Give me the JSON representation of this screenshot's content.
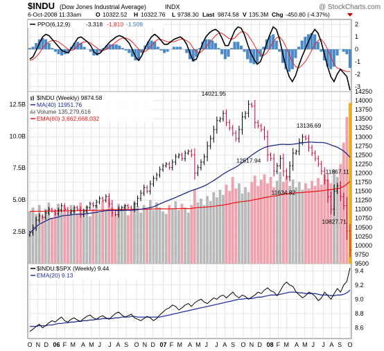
{
  "header": {
    "symbol": "$INDU",
    "name": "(Dow Jones Industrial Average)",
    "exchange": "INDX",
    "date": "6-Oct-2008 11:33am",
    "quote": {
      "open_label": "O",
      "open": "10322.52",
      "high_label": "H",
      "high": "10322.76",
      "low_label": "L",
      "low": "9738.30",
      "last_label": "Last",
      "last": "9874.58",
      "volume_label": "V",
      "volume": "135.3M",
      "change_label": "Chg",
      "change": "-450.80 (-4.37%)"
    },
    "watermark": "@ StockCharts.com"
  },
  "colors": {
    "up_bar": "#000000",
    "down_bar": "#cc0033",
    "ma40": "#1c2a8c",
    "ema60": "#ee1111",
    "ppo_line": "#000000",
    "ppo_signal": "#ee2222",
    "ppo_hist": "#4a8ac8",
    "volume_up": "#b8b8b8",
    "volume_down": "#f2a0ac",
    "volume_last": "#ffaa00",
    "ratio_line": "#000000",
    "ratio_ema": "#2233aa",
    "grid": "#d6d6d6"
  },
  "chart_data": [
    {
      "id": "ppo",
      "type": "line",
      "legend_label": "PPO(6,12,9)",
      "legend_values": [
        "-3.318",
        "-1.810",
        "-1.508"
      ],
      "ylim": [
        -3.4,
        2.4
      ],
      "y_ticks": [
        "2",
        "1",
        "0",
        "-1",
        "-2",
        "-3"
      ],
      "series": [
        {
          "name": "PPO(6,12,9)",
          "role": "line",
          "values": [
            -0.8,
            -0.6,
            -0.1,
            0.5,
            1.0,
            1.2,
            1.1,
            0.8,
            0.5,
            0.2,
            -0.1,
            -0.2,
            -0.3,
            0.1,
            0.5,
            0.9,
            1.0,
            0.8,
            0.6,
            0.3,
            -0.2,
            -0.4,
            -0.3,
            0.0,
            0.3,
            0.6,
            0.8,
            1.0,
            1.1,
            1.0,
            0.8,
            0.5,
            0.0,
            -0.6,
            -0.9,
            -0.5,
            0.1,
            0.6,
            1.0,
            1.2,
            1.0,
            0.7,
            0.4,
            0.4,
            0.6,
            0.8,
            0.9,
            1.0,
            0.8,
            0.4,
            -0.3,
            -0.9,
            -0.8,
            -0.2,
            0.5,
            1.0,
            1.3,
            1.5,
            1.6,
            1.4,
            0.9,
            0.3,
            0.3,
            0.9,
            1.5,
            1.8,
            1.7,
            1.2,
            0.4,
            -0.3,
            -0.8,
            -1.2,
            -1.0,
            -0.3,
            0.5,
            1.2,
            1.8,
            1.6,
            0.8,
            -0.4,
            -1.4,
            -2.2,
            -2.6,
            -2.1,
            -1.3,
            -0.6,
            0.0,
            0.6,
            1.2,
            1.6,
            1.3,
            0.6,
            -0.4,
            -1.4,
            -2.2,
            -2.6,
            -2.0,
            -1.6,
            -1.9,
            -2.2,
            -3.3
          ]
        },
        {
          "name": "Signal",
          "role": "signal",
          "values": [
            -0.9,
            -0.8,
            -0.6,
            -0.3,
            0.1,
            0.4,
            0.6,
            0.7,
            0.7,
            0.6,
            0.4,
            0.2,
            0.0,
            -0.1,
            0.0,
            0.3,
            0.5,
            0.6,
            0.6,
            0.5,
            0.3,
            0.1,
            -0.1,
            -0.1,
            0.0,
            0.2,
            0.4,
            0.6,
            0.8,
            0.9,
            0.9,
            0.8,
            0.6,
            0.3,
            0.0,
            -0.2,
            -0.2,
            0.0,
            0.3,
            0.6,
            0.8,
            0.8,
            0.7,
            0.6,
            0.6,
            0.6,
            0.7,
            0.8,
            0.8,
            0.7,
            0.5,
            0.1,
            -0.2,
            -0.3,
            -0.1,
            0.2,
            0.5,
            0.8,
            1.1,
            1.3,
            1.3,
            1.1,
            0.9,
            0.8,
            0.9,
            1.2,
            1.4,
            1.4,
            1.2,
            0.8,
            0.4,
            -0.1,
            -0.4,
            -0.5,
            -0.3,
            0.1,
            0.6,
            0.9,
            1.0,
            0.7,
            0.2,
            -0.4,
            -1.0,
            -1.4,
            -1.5,
            -1.3,
            -1.0,
            -0.6,
            -0.1,
            0.4,
            0.7,
            0.8,
            0.5,
            0.0,
            -0.6,
            -1.2,
            -1.5,
            -1.6,
            -1.7,
            -1.8,
            -1.8
          ]
        }
      ]
    },
    {
      "id": "price",
      "type": "ohlc",
      "legend": [
        {
          "label": "$INDU (Weekly) 9874.58",
          "color": "#000000",
          "swatch": "bars"
        },
        {
          "label": "MA(40) 11951.76",
          "color": "#1c2a8c",
          "swatch": "line"
        },
        {
          "label": "Volume 135,279,616",
          "color": "#999999",
          "swatch": "bars"
        },
        {
          "label": "EMA(60) 3,662,668,032",
          "color": "#ee1111",
          "swatch": "line"
        }
      ],
      "ylim": [
        9500,
        14250
      ],
      "y_ticks": [
        14250,
        14000,
        13750,
        13500,
        13250,
        13000,
        12750,
        12500,
        12250,
        12000,
        11750,
        11500,
        11250,
        11000,
        10750,
        10500,
        10250,
        10000,
        9750,
        9500
      ],
      "volume_ylim": [
        0,
        13500000000
      ],
      "volume_ticks": [
        "12.5B",
        "10.0B",
        "7.5B",
        "5.0B",
        "2.5B"
      ],
      "close": [
        10350,
        10500,
        10700,
        10820,
        10780,
        10900,
        11000,
        10950,
        10880,
        10980,
        11100,
        11000,
        10900,
        10950,
        11050,
        11000,
        10850,
        10950,
        11050,
        11150,
        11100,
        11200,
        11300,
        11250,
        11350,
        11150,
        10900,
        10850,
        11000,
        11050,
        11100,
        11050,
        11000,
        11150,
        11300,
        11450,
        11600,
        11500,
        11700,
        11850,
        11950,
        12100,
        12200,
        12250,
        12150,
        12300,
        12450,
        12500,
        12400,
        12550,
        12600,
        12500,
        12000,
        12150,
        12300,
        12450,
        12750,
        12950,
        13200,
        13450,
        13500,
        13650,
        13400,
        13250,
        13100,
        12950,
        13200,
        13550,
        13650,
        13900,
        13850,
        13400,
        13300,
        13200,
        13000,
        12500,
        12400,
        12050,
        12200,
        12400,
        12050,
        11900,
        12200,
        12550,
        12600,
        12850,
        13000,
        12950,
        12700,
        12550,
        12400,
        12250,
        12050,
        11800,
        11350,
        11000,
        11500,
        11650,
        11350,
        11100,
        10400,
        9874.58
      ],
      "volume": [
        4100000000.0,
        4400000000.0,
        3900000000.0,
        4600000000.0,
        3700000000.0,
        4300000000.0,
        4800000000.0,
        3600000000.0,
        4200000000.0,
        4700000000.0,
        4000000000.0,
        4500000000.0,
        3800000000.0,
        4600000000.0,
        4400000000.0,
        3900000000.0,
        4800000000.0,
        4100000000.0,
        4500000000.0,
        3700000000.0,
        4300000000.0,
        4600000000.0,
        4000000000.0,
        4900000000.0,
        4200000000.0,
        5100000000.0,
        4400000000.0,
        3900000000.0,
        4700000000.0,
        4200000000.0,
        4600000000.0,
        3800000000.0,
        4300000000.0,
        4800000000.0,
        4500000000.0,
        4000000000.0,
        4600000000.0,
        4300000000.0,
        5000000000.0,
        4200000000.0,
        4800000000.0,
        4400000000.0,
        4100000000.0,
        3900000000.0,
        4600000000.0,
        4300000000.0,
        4900000000.0,
        4200000000.0,
        4700000000.0,
        4400000000.0,
        4000000000.0,
        4600000000.0,
        5800000000.0,
        4800000000.0,
        5100000000.0,
        4600000000.0,
        5300000000.0,
        4900000000.0,
        5600000000.0,
        5200000000.0,
        5800000000.0,
        5400000000.0,
        6200000000.0,
        5700000000.0,
        6800000000.0,
        5900000000.0,
        6300000000.0,
        5500000000.0,
        6000000000.0,
        5600000000.0,
        6400000000.0,
        6900000000.0,
        6100000000.0,
        6600000000.0,
        7000000000.0,
        6300000000.0,
        6800000000.0,
        6000000000.0,
        6500000000.0,
        7200000000.0,
        6400000000.0,
        6900000000.0,
        6100000000.0,
        6600000000.0,
        6000000000.0,
        6400000000.0,
        5800000000.0,
        6300000000.0,
        5900000000.0,
        6500000000.0,
        6100000000.0,
        6700000000.0,
        6200000000.0,
        7000000000.0,
        6600000000.0,
        6300000000.0,
        7400000000.0,
        6800000000.0,
        7800000000.0,
        9500000000.0,
        11500000000.0,
        12600000000.0
      ],
      "annotations": [
        {
          "label": "14021.95",
          "value": 14021.95,
          "week": 58,
          "pos": "above"
        },
        {
          "label": "12517.94",
          "value": 12517.94,
          "week": 69,
          "pos": "below"
        },
        {
          "label": "13136.69",
          "value": 13136.69,
          "week": 88,
          "pos": "above"
        },
        {
          "label": "11634.82",
          "value": 11634.82,
          "week": 80,
          "pos": "below"
        },
        {
          "label": "11867.11",
          "value": 11867.11,
          "week": 97,
          "pos": "above"
        },
        {
          "label": "10827.71",
          "value": 10827.71,
          "week": 96,
          "pos": "below"
        }
      ]
    },
    {
      "id": "ratio",
      "type": "line",
      "legend": [
        {
          "label": "$INDU:$SPX (Weekly) 9.44",
          "color": "#000000",
          "swatch": "line"
        },
        {
          "label": "EMA(20) 9.13",
          "color": "#2233aa",
          "swatch": "line"
        }
      ],
      "ylim": [
        8.45,
        9.5
      ],
      "y_ticks": [
        "9.4",
        "9.2",
        "9.0",
        "8.8",
        "8.6"
      ],
      "series": [
        {
          "name": "$INDU:$SPX (Weekly)",
          "values": [
            8.55,
            8.58,
            8.62,
            8.65,
            8.6,
            8.63,
            8.67,
            8.7,
            8.68,
            8.72,
            8.75,
            8.7,
            8.68,
            8.72,
            8.74,
            8.71,
            8.69,
            8.73,
            8.76,
            8.78,
            8.74,
            8.72,
            8.75,
            8.77,
            8.74,
            8.72,
            8.76,
            8.8,
            8.82,
            8.78,
            8.75,
            8.77,
            8.79,
            8.74,
            8.72,
            8.7,
            8.73,
            8.76,
            8.74,
            8.7,
            8.73,
            8.78,
            8.82,
            8.86,
            8.88,
            8.92,
            8.9,
            8.85,
            8.88,
            8.92,
            8.94,
            8.9,
            8.95,
            8.98,
            9.0,
            8.96,
            8.94,
            8.98,
            9.02,
            9.0,
            9.04,
            9.06,
            9.02,
            9.06,
            9.1,
            9.05,
            9.02,
            9.06,
            9.04,
            9.0,
            9.03,
            9.06,
            9.1,
            9.08,
            9.13,
            9.16,
            9.12,
            9.1,
            9.05,
            9.12,
            9.2,
            9.24,
            9.2,
            9.18,
            9.1,
            9.06,
            9.02,
            9.05,
            9.1,
            9.08,
            9.04,
            8.98,
            9.02,
            9.1,
            9.05,
            9.0,
            9.08,
            9.15,
            9.1,
            9.2,
            9.25,
            9.44
          ]
        },
        {
          "name": "EMA(20)",
          "values": [
            8.62,
            8.62,
            8.62,
            8.63,
            8.63,
            8.63,
            8.64,
            8.64,
            8.65,
            8.66,
            8.66,
            8.67,
            8.67,
            8.68,
            8.68,
            8.69,
            8.69,
            8.7,
            8.7,
            8.71,
            8.71,
            8.72,
            8.72,
            8.73,
            8.73,
            8.73,
            8.73,
            8.74,
            8.74,
            8.75,
            8.75,
            8.75,
            8.76,
            8.76,
            8.75,
            8.75,
            8.75,
            8.75,
            8.75,
            8.75,
            8.75,
            8.75,
            8.76,
            8.77,
            8.78,
            8.79,
            8.8,
            8.81,
            8.82,
            8.83,
            8.84,
            8.85,
            8.86,
            8.87,
            8.88,
            8.89,
            8.9,
            8.91,
            8.92,
            8.93,
            8.94,
            8.95,
            8.96,
            8.97,
            8.98,
            8.99,
            9.0,
            9.0,
            9.01,
            9.01,
            9.01,
            9.02,
            9.03,
            9.03,
            9.04,
            9.05,
            9.06,
            9.06,
            9.06,
            9.07,
            9.08,
            9.09,
            9.1,
            9.1,
            9.1,
            9.09,
            9.09,
            9.08,
            9.08,
            9.08,
            9.08,
            9.07,
            9.06,
            9.06,
            9.06,
            9.05,
            9.05,
            9.06,
            9.06,
            9.07,
            9.09,
            9.13
          ]
        }
      ]
    }
  ],
  "x_axis": {
    "labels": [
      {
        "text": "O",
        "week": 0,
        "bold": false
      },
      {
        "text": "N",
        "week": 4,
        "bold": false
      },
      {
        "text": "D",
        "week": 8,
        "bold": false
      },
      {
        "text": "06",
        "week": 13,
        "bold": true
      },
      {
        "text": "F",
        "week": 17,
        "bold": false
      },
      {
        "text": "M",
        "week": 21,
        "bold": false
      },
      {
        "text": "A",
        "week": 26,
        "bold": false
      },
      {
        "text": "M",
        "week": 30,
        "bold": false
      },
      {
        "text": "J",
        "week": 34,
        "bold": false
      },
      {
        "text": "J",
        "week": 39,
        "bold": false
      },
      {
        "text": "A",
        "week": 43,
        "bold": false
      },
      {
        "text": "S",
        "week": 47,
        "bold": false
      },
      {
        "text": "O",
        "week": 52,
        "bold": false
      },
      {
        "text": "N",
        "week": 56,
        "bold": false
      },
      {
        "text": "D",
        "week": 60,
        "bold": false
      },
      {
        "text": "07",
        "week": 65,
        "bold": true
      },
      {
        "text": "F",
        "week": 69,
        "bold": false
      },
      {
        "text": "M",
        "week": 73,
        "bold": false
      },
      {
        "text": "A",
        "week": 78,
        "bold": false
      },
      {
        "text": "M",
        "week": 82,
        "bold": false
      },
      {
        "text": "J",
        "week": 86,
        "bold": false
      },
      {
        "text": "J",
        "week": 91,
        "bold": false
      },
      {
        "text": "A",
        "week": 95,
        "bold": false
      },
      {
        "text": "S",
        "week": 99,
        "bold": false
      },
      {
        "text": "O",
        "week": 104,
        "bold": false
      },
      {
        "text": "N",
        "week": 108,
        "bold": false
      },
      {
        "text": "D",
        "week": 112,
        "bold": false
      },
      {
        "text": "08",
        "week": 117,
        "bold": true
      },
      {
        "text": "F",
        "week": 121,
        "bold": false
      },
      {
        "text": "M",
        "week": 125,
        "bold": false
      },
      {
        "text": "A",
        "week": 130,
        "bold": false
      },
      {
        "text": "M",
        "week": 134,
        "bold": false
      },
      {
        "text": "J",
        "week": 138,
        "bold": false
      },
      {
        "text": "J",
        "week": 143,
        "bold": false
      },
      {
        "text": "A",
        "week": 147,
        "bold": false
      },
      {
        "text": "S",
        "week": 151,
        "bold": false
      },
      {
        "text": "O",
        "week": 156,
        "bold": false
      }
    ],
    "total_weeks": 157
  }
}
